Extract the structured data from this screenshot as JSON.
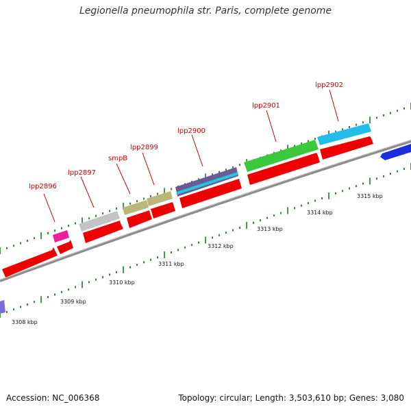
{
  "title": "Legionella pneumophila str. Paris, complete genome",
  "footer": {
    "accession": "Accession: NC_006368",
    "summary": "Topology: circular; Length: 3,503,610 bp; Genes: 3,080"
  },
  "colors": {
    "cds": "#ee0000",
    "backbone": "#8c8c8c",
    "tick": "#1a7a1a",
    "label": "#d00000"
  },
  "kbp_ticks": [
    "3308 kbp",
    "3309 kbp",
    "3310 kbp",
    "3311 kbp",
    "3312 kbp",
    "3313 kbp",
    "3314 kbp",
    "3315 kbp"
  ],
  "genes": [
    {
      "label": "lpp2896",
      "color": "#ee1e9c"
    },
    {
      "label": "lpp2897",
      "color": "#c4c4c4"
    },
    {
      "label": "smpB",
      "color": "#b9b67a"
    },
    {
      "label": "lpp2899",
      "color": "#b9b67a"
    },
    {
      "label": "lpp2900",
      "color": "#6a5a9a"
    },
    {
      "label": "lpp2901",
      "color": "#3cc83c"
    },
    {
      "label": "lpp2902",
      "color": "#22bde8"
    }
  ]
}
